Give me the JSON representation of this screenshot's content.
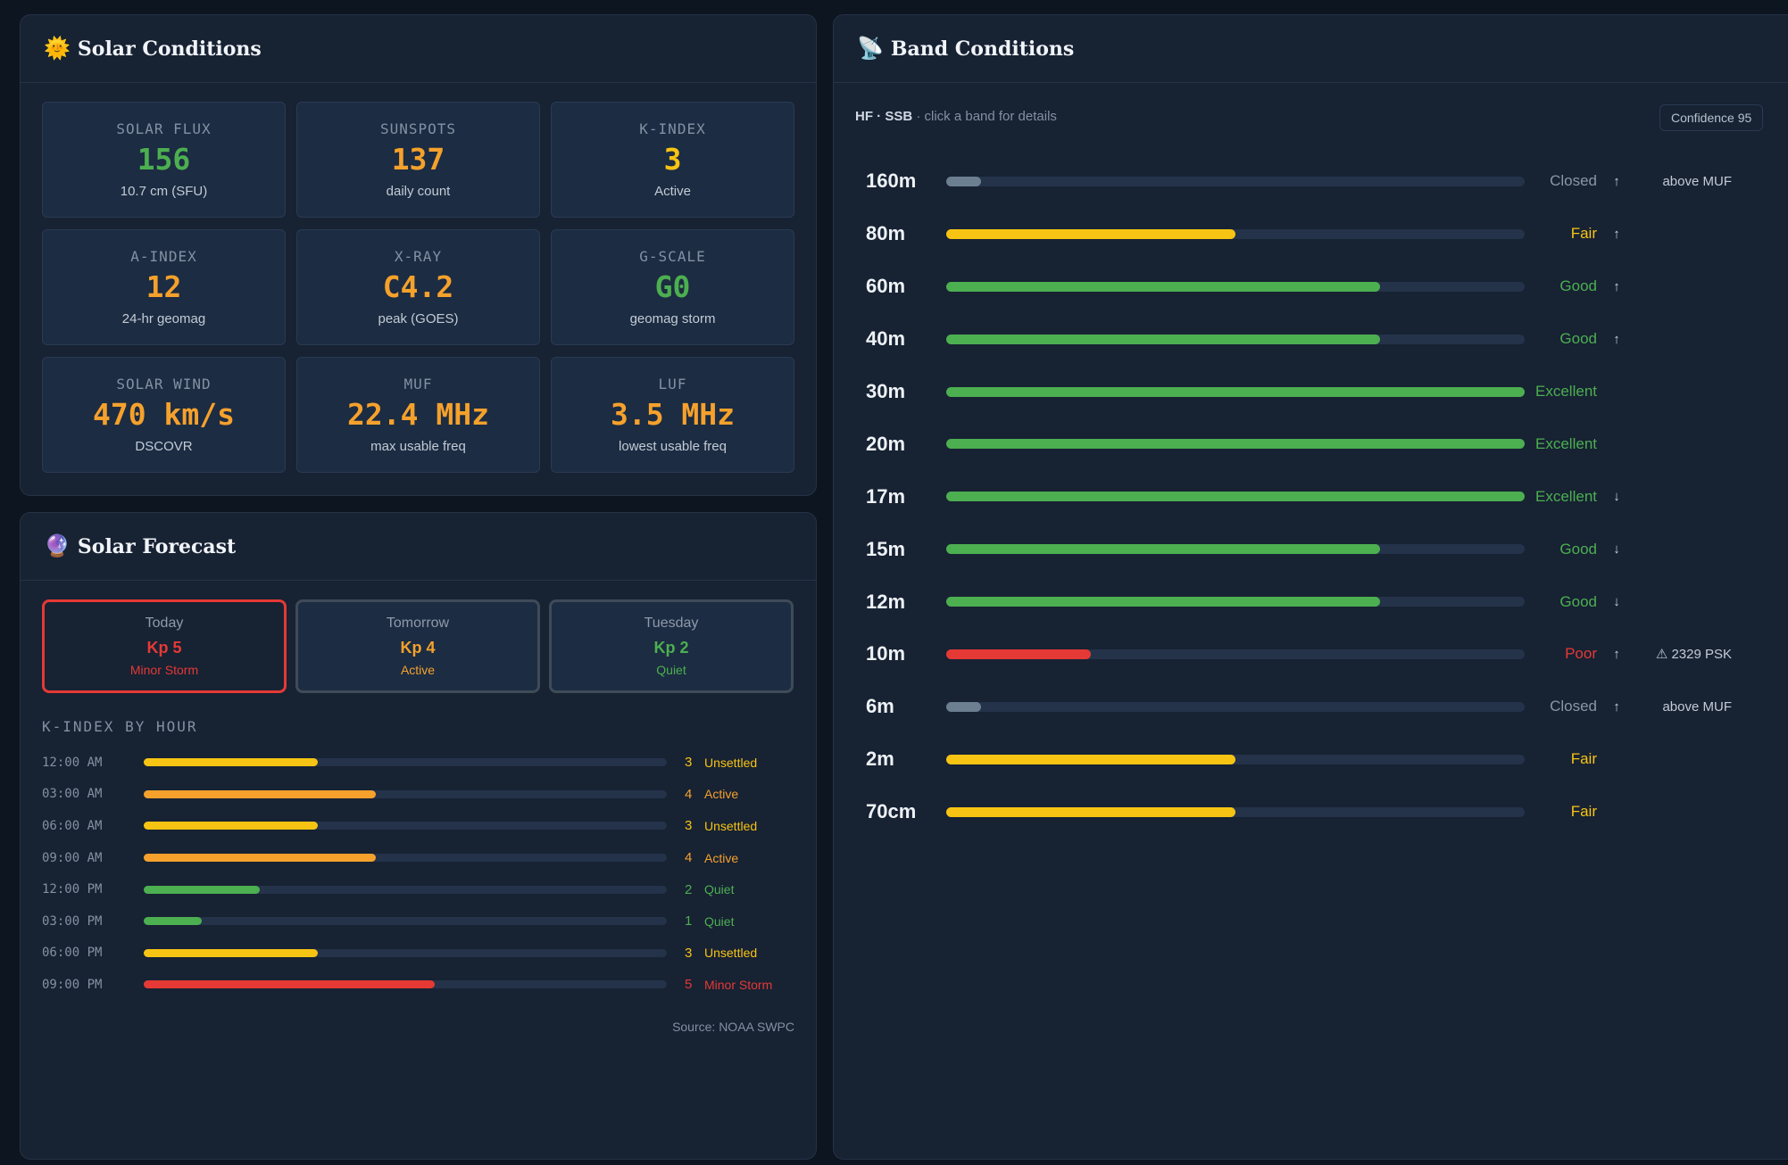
{
  "solar": {
    "icon": "🌞",
    "title": "Solar Conditions",
    "stats": [
      {
        "label": "SOLAR FLUX",
        "value": "156",
        "sub": "10.7 cm (SFU)",
        "color": "#4caf50"
      },
      {
        "label": "SUNSPOTS",
        "value": "137",
        "sub": "daily count",
        "color": "#f5a12c"
      },
      {
        "label": "K-INDEX",
        "value": "3",
        "sub": "Active",
        "color": "#f7c413"
      },
      {
        "label": "A-INDEX",
        "value": "12",
        "sub": "24-hr geomag",
        "color": "#f5a12c"
      },
      {
        "label": "X-RAY",
        "value": "C4.2",
        "sub": "peak (GOES)",
        "color": "#f5a12c"
      },
      {
        "label": "G-SCALE",
        "value": "G0",
        "sub": "geomag storm",
        "color": "#4caf50"
      },
      {
        "label": "SOLAR WIND",
        "value": "470 km/s",
        "sub": "DSCOVR",
        "color": "#f5a12c"
      },
      {
        "label": "MUF",
        "value": "22.4 MHz",
        "sub": "max usable freq",
        "color": "#f5a12c"
      },
      {
        "label": "LUF",
        "value": "3.5 MHz",
        "sub": "lowest usable freq",
        "color": "#f5a12c"
      }
    ]
  },
  "forecast": {
    "icon": "🔮",
    "title": "Solar Forecast",
    "days": [
      {
        "day": "Today",
        "kp": "Kp 5",
        "level": "Minor Storm",
        "color": "#e53935",
        "active": true
      },
      {
        "day": "Tomorrow",
        "kp": "Kp 4",
        "level": "Active",
        "color": "#f5a12c",
        "active": false
      },
      {
        "day": "Tuesday",
        "kp": "Kp 2",
        "level": "Quiet",
        "color": "#4caf50",
        "active": false
      }
    ],
    "hourly_title": "K-INDEX BY HOUR",
    "hourly": [
      {
        "time": "12:00 AM",
        "kp": 3,
        "label": "Unsettled",
        "color": "#f7c413"
      },
      {
        "time": "03:00 AM",
        "kp": 4,
        "label": "Active",
        "color": "#f5a12c"
      },
      {
        "time": "06:00 AM",
        "kp": 3,
        "label": "Unsettled",
        "color": "#f7c413"
      },
      {
        "time": "09:00 AM",
        "kp": 4,
        "label": "Active",
        "color": "#f5a12c"
      },
      {
        "time": "12:00 PM",
        "kp": 2,
        "label": "Quiet",
        "color": "#4caf50"
      },
      {
        "time": "03:00 PM",
        "kp": 1,
        "label": "Quiet",
        "color": "#4caf50"
      },
      {
        "time": "06:00 PM",
        "kp": 3,
        "label": "Unsettled",
        "color": "#f7c413"
      },
      {
        "time": "09:00 PM",
        "kp": 5,
        "label": "Minor Storm",
        "color": "#e53935"
      }
    ],
    "kp_max": 9,
    "source": "Source: NOAA SWPC"
  },
  "bands": {
    "icon": "📡",
    "title": "Band Conditions",
    "mode": "HF · SSB",
    "hint": "· click a band for details",
    "confidence": "Confidence 95",
    "rows": [
      {
        "name": "160m",
        "status": "Closed",
        "level": 0.06,
        "color": "#6b7f90",
        "trend": "↑",
        "note": "above MUF"
      },
      {
        "name": "80m",
        "status": "Fair",
        "level": 0.5,
        "color": "#f7c413",
        "trend": "↑",
        "note": ""
      },
      {
        "name": "60m",
        "status": "Good",
        "level": 0.75,
        "color": "#4caf50",
        "trend": "↑",
        "note": ""
      },
      {
        "name": "40m",
        "status": "Good",
        "level": 0.75,
        "color": "#4caf50",
        "trend": "↑",
        "note": ""
      },
      {
        "name": "30m",
        "status": "Excellent",
        "level": 1.0,
        "color": "#4caf50",
        "trend": "",
        "note": ""
      },
      {
        "name": "20m",
        "status": "Excellent",
        "level": 1.0,
        "color": "#4caf50",
        "trend": "",
        "note": ""
      },
      {
        "name": "17m",
        "status": "Excellent",
        "level": 1.0,
        "color": "#4caf50",
        "trend": "↓",
        "note": ""
      },
      {
        "name": "15m",
        "status": "Good",
        "level": 0.75,
        "color": "#4caf50",
        "trend": "↓",
        "note": ""
      },
      {
        "name": "12m",
        "status": "Good",
        "level": 0.75,
        "color": "#4caf50",
        "trend": "↓",
        "note": ""
      },
      {
        "name": "10m",
        "status": "Poor",
        "level": 0.25,
        "color": "#e53935",
        "trend": "↑",
        "note": "⚠ 2329 PSK"
      },
      {
        "name": "6m",
        "status": "Closed",
        "level": 0.06,
        "color": "#6b7f90",
        "trend": "↑",
        "note": "above MUF"
      },
      {
        "name": "2m",
        "status": "Fair",
        "level": 0.5,
        "color": "#f7c413",
        "trend": "",
        "note": ""
      },
      {
        "name": "70cm",
        "status": "Fair",
        "level": 0.5,
        "color": "#f7c413",
        "trend": "",
        "note": ""
      }
    ]
  }
}
